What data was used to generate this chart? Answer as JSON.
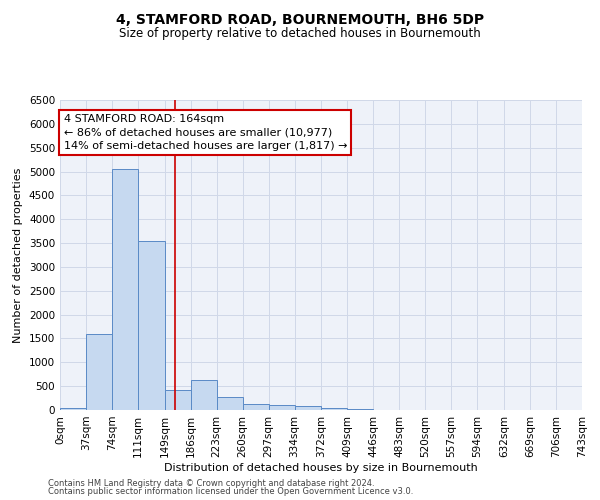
{
  "title": "4, STAMFORD ROAD, BOURNEMOUTH, BH6 5DP",
  "subtitle": "Size of property relative to detached houses in Bournemouth",
  "xlabel": "Distribution of detached houses by size in Bournemouth",
  "ylabel": "Number of detached properties",
  "footer_line1": "Contains HM Land Registry data © Crown copyright and database right 2024.",
  "footer_line2": "Contains public sector information licensed under the Open Government Licence v3.0.",
  "bar_edges": [
    0,
    37,
    74,
    111,
    149,
    186,
    223,
    260,
    297,
    334,
    372,
    409,
    446,
    483,
    520,
    557,
    594,
    632,
    669,
    706,
    743
  ],
  "bar_heights": [
    50,
    1600,
    5050,
    3550,
    420,
    620,
    280,
    120,
    100,
    80,
    50,
    30,
    0,
    0,
    0,
    0,
    0,
    0,
    0,
    0
  ],
  "bar_color": "#c6d9f0",
  "bar_edge_color": "#5a8ac6",
  "property_size": 164,
  "red_line_color": "#cc0000",
  "annotation_line1": "4 STAMFORD ROAD: 164sqm",
  "annotation_line2": "← 86% of detached houses are smaller (10,977)",
  "annotation_line3": "14% of semi-detached houses are larger (1,817) →",
  "annotation_box_color": "#cc0000",
  "ylim": [
    0,
    6500
  ],
  "yticks": [
    0,
    500,
    1000,
    1500,
    2000,
    2500,
    3000,
    3500,
    4000,
    4500,
    5000,
    5500,
    6000,
    6500
  ],
  "grid_color": "#d0d8e8",
  "bg_color": "#eef2f9",
  "title_fontsize": 10,
  "subtitle_fontsize": 8.5,
  "axis_label_fontsize": 8,
  "tick_fontsize": 7.5,
  "annotation_fontsize": 8
}
